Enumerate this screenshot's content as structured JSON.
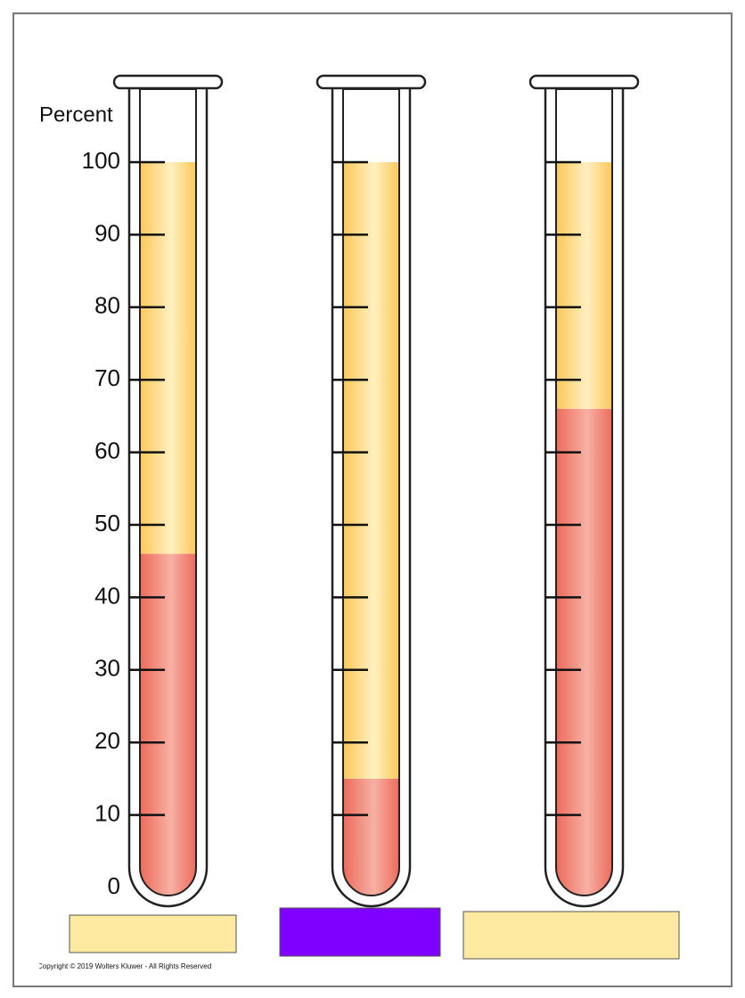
{
  "chart_data": {
    "type": "tube",
    "axis_label": "Percent",
    "categories": [
      null,
      null,
      null
    ],
    "series": [
      {
        "color": "#ef7d6e",
        "values": [
          46,
          15,
          66
        ]
      },
      {
        "color": "#fcd36a",
        "values": [
          54,
          85,
          34
        ]
      }
    ],
    "ylim": [
      0,
      100
    ],
    "yticks": [
      0,
      10,
      20,
      30,
      40,
      50,
      60,
      70,
      80,
      90,
      100
    ],
    "copyright": "Copyright © 2019 Wolters Kluwer - All Rights Reserved"
  }
}
